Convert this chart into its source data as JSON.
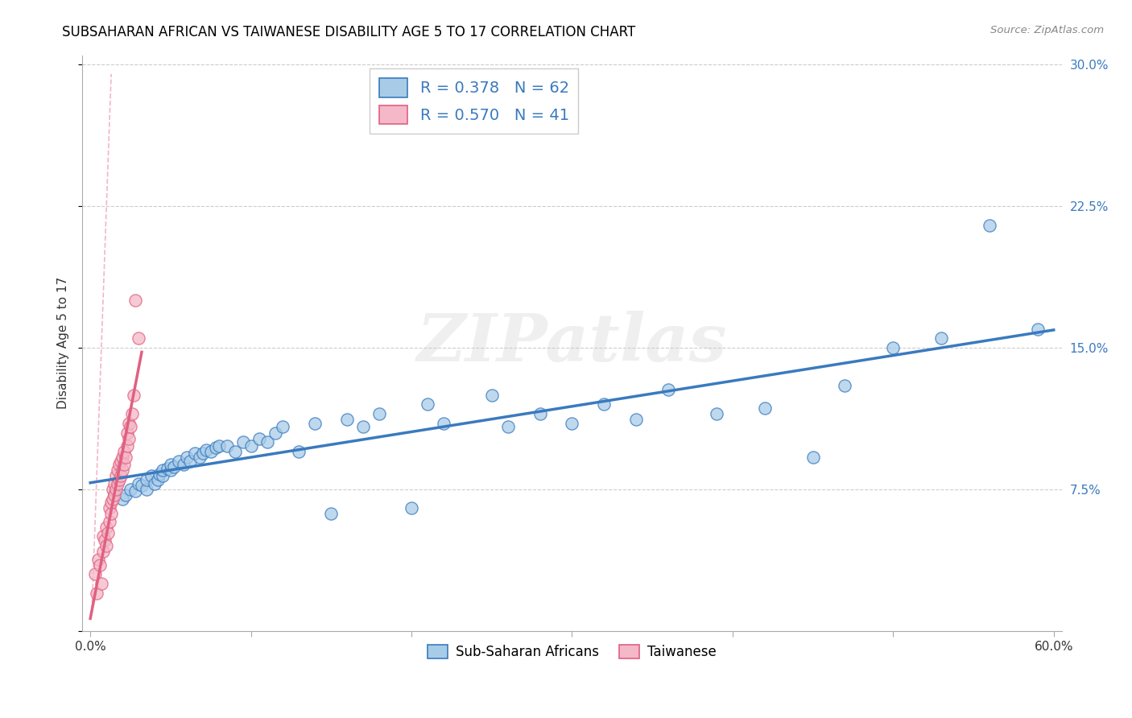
{
  "title": "SUBSAHARAN AFRICAN VS TAIWANESE DISABILITY AGE 5 TO 17 CORRELATION CHART",
  "source": "Source: ZipAtlas.com",
  "ylabel": "Disability Age 5 to 17",
  "xlabel": "",
  "xlim": [
    0.0,
    0.6
  ],
  "ylim": [
    0.0,
    0.3
  ],
  "xticks": [
    0.0,
    0.1,
    0.2,
    0.3,
    0.4,
    0.5,
    0.6
  ],
  "xticklabels": [
    "0.0%",
    "",
    "",
    "",
    "",
    "",
    "60.0%"
  ],
  "yticks_right": [
    0.0,
    0.075,
    0.15,
    0.225,
    0.3
  ],
  "yticklabels_right": [
    "",
    "7.5%",
    "15.0%",
    "22.5%",
    "30.0%"
  ],
  "blue_R": 0.378,
  "blue_N": 62,
  "pink_R": 0.57,
  "pink_N": 41,
  "blue_color": "#a8cce8",
  "pink_color": "#f4b8c8",
  "blue_line_color": "#3a7abf",
  "pink_line_color": "#e06080",
  "legend_label_blue": "Sub-Saharan Africans",
  "legend_label_pink": "Taiwanese",
  "blue_scatter_x": [
    0.015,
    0.02,
    0.022,
    0.025,
    0.028,
    0.03,
    0.032,
    0.035,
    0.035,
    0.038,
    0.04,
    0.042,
    0.043,
    0.045,
    0.045,
    0.048,
    0.05,
    0.05,
    0.052,
    0.055,
    0.058,
    0.06,
    0.062,
    0.065,
    0.068,
    0.07,
    0.072,
    0.075,
    0.078,
    0.08,
    0.085,
    0.09,
    0.095,
    0.1,
    0.105,
    0.11,
    0.115,
    0.12,
    0.13,
    0.14,
    0.15,
    0.16,
    0.17,
    0.18,
    0.2,
    0.21,
    0.22,
    0.25,
    0.26,
    0.28,
    0.3,
    0.32,
    0.34,
    0.36,
    0.39,
    0.42,
    0.45,
    0.47,
    0.5,
    0.53,
    0.56,
    0.59
  ],
  "blue_scatter_y": [
    0.073,
    0.07,
    0.072,
    0.075,
    0.074,
    0.078,
    0.077,
    0.075,
    0.08,
    0.082,
    0.078,
    0.08,
    0.083,
    0.082,
    0.085,
    0.086,
    0.085,
    0.088,
    0.087,
    0.09,
    0.088,
    0.092,
    0.09,
    0.094,
    0.092,
    0.094,
    0.096,
    0.095,
    0.097,
    0.098,
    0.098,
    0.095,
    0.1,
    0.098,
    0.102,
    0.1,
    0.105,
    0.108,
    0.095,
    0.11,
    0.062,
    0.112,
    0.108,
    0.115,
    0.065,
    0.12,
    0.11,
    0.125,
    0.108,
    0.115,
    0.11,
    0.12,
    0.112,
    0.128,
    0.115,
    0.118,
    0.092,
    0.13,
    0.15,
    0.155,
    0.215,
    0.16
  ],
  "pink_scatter_x": [
    0.003,
    0.004,
    0.005,
    0.006,
    0.007,
    0.008,
    0.008,
    0.009,
    0.01,
    0.01,
    0.011,
    0.012,
    0.012,
    0.013,
    0.013,
    0.014,
    0.014,
    0.015,
    0.015,
    0.016,
    0.016,
    0.017,
    0.017,
    0.018,
    0.018,
    0.019,
    0.019,
    0.02,
    0.02,
    0.021,
    0.021,
    0.022,
    0.023,
    0.023,
    0.024,
    0.024,
    0.025,
    0.026,
    0.027,
    0.028,
    0.03
  ],
  "pink_scatter_y": [
    0.03,
    0.02,
    0.038,
    0.035,
    0.025,
    0.042,
    0.05,
    0.048,
    0.045,
    0.055,
    0.052,
    0.058,
    0.065,
    0.062,
    0.068,
    0.07,
    0.075,
    0.072,
    0.078,
    0.075,
    0.082,
    0.078,
    0.085,
    0.08,
    0.088,
    0.082,
    0.09,
    0.085,
    0.092,
    0.088,
    0.095,
    0.092,
    0.098,
    0.105,
    0.102,
    0.11,
    0.108,
    0.115,
    0.125,
    0.175,
    0.155
  ],
  "watermark_text": "ZIPatlas",
  "background_color": "#ffffff",
  "grid_color": "#cccccc"
}
